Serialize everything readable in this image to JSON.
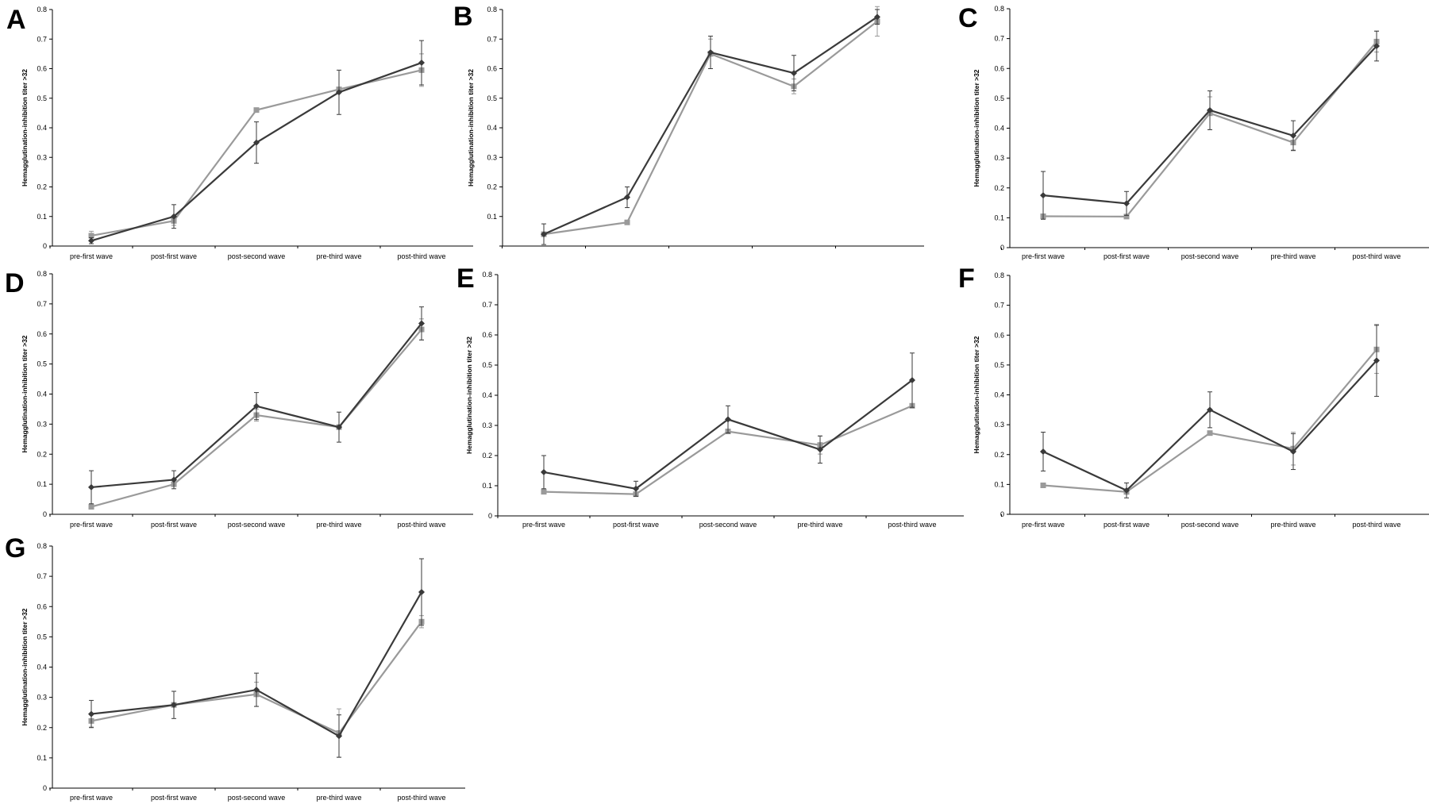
{
  "chart_data": [
    {
      "panel": "A",
      "type": "line",
      "ylabel": "Hemagglutination-inhibition titer >32",
      "categories": [
        "pre-first wave",
        "post-first wave",
        "post-second wave",
        "pre-third wave",
        "post-third wave"
      ],
      "ylim": [
        0,
        0.8
      ],
      "yticks": [
        "0",
        "0.1",
        "0.2",
        "0.3",
        "0.4",
        "0.5",
        "0.6",
        "0.7",
        "0.8"
      ],
      "series": [
        {
          "marker": "diamond",
          "color": "#3a3a3a",
          "values": [
            0.018,
            0.1,
            0.35,
            0.52,
            0.62
          ],
          "errors": [
            0.01,
            0.04,
            0.07,
            0.075,
            0.075
          ]
        },
        {
          "marker": "square",
          "color": "#9a9a9a",
          "values": [
            0.035,
            0.085,
            0.46,
            0.53,
            0.595
          ],
          "errors": [
            0.015,
            0.015,
            0,
            0,
            0.055
          ]
        }
      ]
    },
    {
      "panel": "B",
      "type": "line",
      "ylabel": "Hemagglutination-inhibition titer >32",
      "categories": [
        "",
        "",
        "",
        "",
        ""
      ],
      "ylim": [
        0,
        0.8
      ],
      "yticks": [
        "",
        "0.1",
        "0.2",
        "0.3",
        "0.4",
        "0.5",
        "0.6",
        "0.7",
        "0.8"
      ],
      "series": [
        {
          "marker": "diamond",
          "color": "#3a3a3a",
          "values": [
            0.04,
            0.165,
            0.655,
            0.585,
            0.775
          ],
          "errors": [
            0.035,
            0.035,
            0.055,
            0.06,
            0.025
          ]
        },
        {
          "marker": "square",
          "color": "#9a9a9a",
          "values": [
            0.04,
            0.08,
            0.65,
            0.54,
            0.76
          ],
          "errors": [
            0,
            0,
            0.05,
            0.025,
            0.05
          ]
        }
      ]
    },
    {
      "panel": "C",
      "type": "line",
      "ylabel": "Hemagglutination-inhibition titer >32",
      "categories": [
        "pre-first wave",
        "post-first wave",
        "post-second wave",
        "pre-third wave",
        "post-third wave"
      ],
      "ylim": [
        0,
        0.8
      ],
      "yticks": [
        "0",
        "0.1",
        "0.2",
        "0.3",
        "0.4",
        "0.5",
        "0.6",
        "0.7",
        "0.8"
      ],
      "series": [
        {
          "marker": "diamond",
          "color": "#3a3a3a",
          "values": [
            0.175,
            0.148,
            0.46,
            0.375,
            0.675
          ],
          "errors": [
            0.08,
            0.04,
            0.065,
            0.05,
            0.05
          ]
        },
        {
          "marker": "square",
          "color": "#9a9a9a",
          "values": [
            0.105,
            0.104,
            0.45,
            0.352,
            0.69
          ],
          "errors": [
            0,
            0,
            0.055,
            0.025,
            0.035
          ]
        }
      ]
    },
    {
      "panel": "D",
      "type": "line",
      "ylabel": "Hemagglutination-inhibition titer >32",
      "categories": [
        "pre-first wave",
        "post-first wave",
        "post-second wave",
        "pre-third wave",
        "post-third wave"
      ],
      "ylim": [
        0,
        0.8
      ],
      "yticks": [
        "0",
        "0.1",
        "0.2",
        "0.3",
        "0.4",
        "0.5",
        "0.6",
        "0.7",
        "0.8"
      ],
      "series": [
        {
          "marker": "diamond",
          "color": "#3a3a3a",
          "values": [
            0.09,
            0.115,
            0.36,
            0.29,
            0.635
          ],
          "errors": [
            0.055,
            0.03,
            0.045,
            0.05,
            0.055
          ]
        },
        {
          "marker": "square",
          "color": "#9a9a9a",
          "values": [
            0.025,
            0.1,
            0.33,
            0.29,
            0.615
          ],
          "errors": [
            0,
            0,
            0.02,
            0,
            0.035
          ]
        }
      ]
    },
    {
      "panel": "E",
      "type": "line",
      "ylabel": "Hemagglutination-inhibition titer >32",
      "categories": [
        "pre-first wave",
        "post-first wave",
        "post-second wave",
        "pre-third wave",
        "post-third wave"
      ],
      "ylim": [
        0,
        0.8
      ],
      "yticks": [
        "0",
        "0.1",
        "0.2",
        "0.3",
        "0.4",
        "0.5",
        "0.6",
        "0.7",
        "0.8"
      ],
      "series": [
        {
          "marker": "diamond",
          "color": "#3a3a3a",
          "values": [
            0.145,
            0.09,
            0.32,
            0.22,
            0.45
          ],
          "errors": [
            0.055,
            0.025,
            0.045,
            0.045,
            0.09
          ]
        },
        {
          "marker": "square",
          "color": "#9a9a9a",
          "values": [
            0.08,
            0.072,
            0.28,
            0.235,
            0.365
          ],
          "errors": [
            0,
            0,
            0,
            0.03,
            0
          ]
        }
      ]
    },
    {
      "panel": "F",
      "type": "line",
      "ylabel": "Hemagglutination-inhibition titer >32",
      "categories": [
        "pre-first wave",
        "post-first wave",
        "post-second wave",
        "pre-third wave",
        "post-third wave"
      ],
      "ylim": [
        0,
        0.8
      ],
      "yticks": [
        "0",
        "0.1",
        "0.2",
        "0.3",
        "0.4",
        "0.5",
        "0.6",
        "0.7",
        "0.8"
      ],
      "series": [
        {
          "marker": "diamond",
          "color": "#3a3a3a",
          "values": [
            0.21,
            0.08,
            0.35,
            0.21,
            0.515
          ],
          "errors": [
            0.065,
            0.025,
            0.06,
            0.06,
            0.12
          ]
        },
        {
          "marker": "square",
          "color": "#9a9a9a",
          "values": [
            0.097,
            0.075,
            0.272,
            0.22,
            0.552
          ],
          "errors": [
            0,
            0,
            0,
            0.055,
            0.08
          ]
        }
      ]
    },
    {
      "panel": "G",
      "type": "line",
      "ylabel": "Hemagglutination-inhibition titer  >32",
      "categories": [
        "pre-first wave",
        "post-first wave",
        "post-second wave",
        "pre-third wave",
        "post-third wave"
      ],
      "ylim": [
        0,
        0.8
      ],
      "yticks": [
        "0",
        "0.1",
        "0.2",
        "0.3",
        "0.4",
        "0.5",
        "0.6",
        "0.7",
        "0.8"
      ],
      "series": [
        {
          "marker": "diamond",
          "color": "#3a3a3a",
          "values": [
            0.245,
            0.275,
            0.325,
            0.172,
            0.648
          ],
          "errors": [
            0.045,
            0.045,
            0.055,
            0.07,
            0.11
          ]
        },
        {
          "marker": "square",
          "color": "#9a9a9a",
          "values": [
            0.222,
            0.275,
            0.31,
            0.182,
            0.55
          ],
          "errors": [
            0.02,
            0,
            0.04,
            0.08,
            0.02
          ]
        }
      ]
    }
  ]
}
